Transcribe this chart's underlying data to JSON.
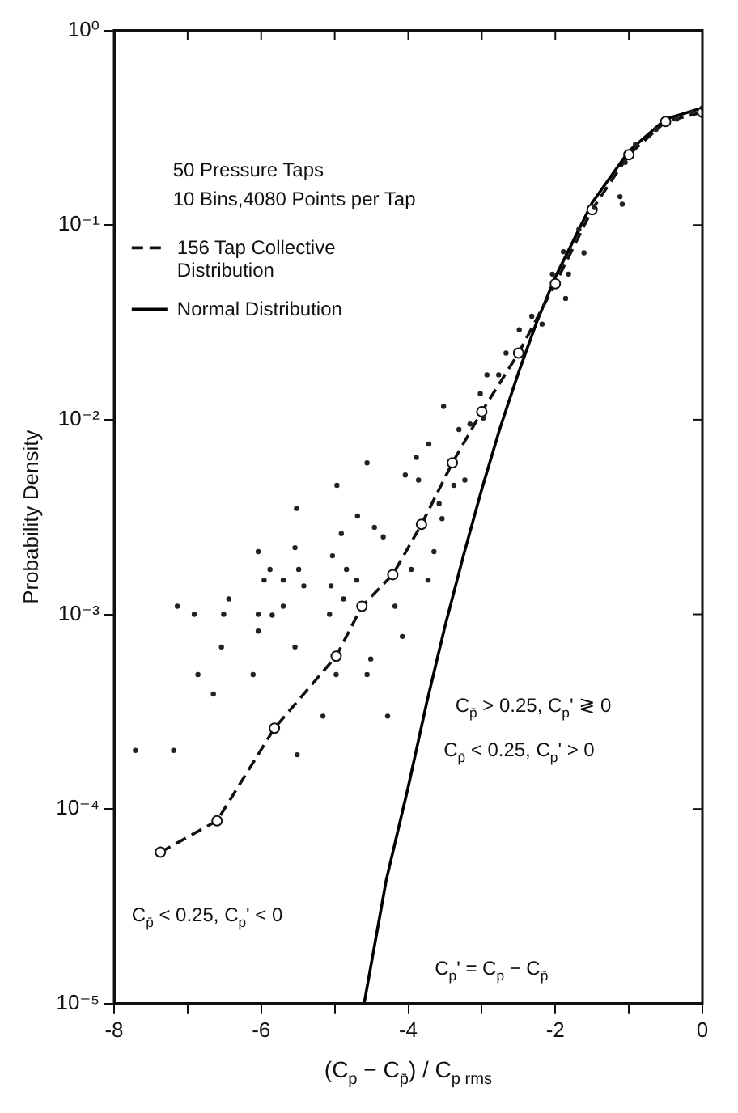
{
  "chart_data": {
    "type": "line",
    "xlabel": "(C$_{p}$ − C$_{p̄}$) / C$_{p rms}$",
    "ylabel": "Probability Density",
    "log": "y",
    "grid": false,
    "legend": "top left",
    "xlim": [
      -8,
      0
    ],
    "ylim": [
      1e-05,
      1
    ],
    "xticks": [
      -8,
      {
        "value": -7,
        "label": null
      },
      -6,
      {
        "value": -5,
        "label": null
      },
      -4,
      {
        "value": -3,
        "label": null
      },
      -2,
      {
        "value": -1,
        "label": null
      },
      0
    ],
    "yticks": [
      {
        "value": 1e-05,
        "label": "10⁻⁵"
      },
      {
        "value": 0.0001,
        "label": "10⁻⁴"
      },
      {
        "value": 0.001,
        "label": "10⁻³"
      },
      {
        "value": 0.01,
        "label": "10⁻²"
      },
      {
        "value": 0.1,
        "label": "10⁻¹"
      },
      {
        "value": 1,
        "label": "10⁰"
      }
    ],
    "annotations": [
      "50 Pressure Taps",
      "10 Bins,4080 Points per Tap",
      "C$_{p̄}$ > 0.25, C$_{p}$' ≷ 0",
      "C$_{p̄}$ < 0.25, C$_{p}$' > 0",
      "C$_{p̄}$ < 0.25, C$_{p}$' < 0",
      "C$_{p}$' = C$_{p}$ − C$_{p̄}$"
    ],
    "series": [
      {
        "type": "scatter",
        "color": "#222222",
        "marker": "circle",
        "x": [
          -7.71,
          -7.19,
          -7.14,
          -6.91,
          -6.86,
          -6.65,
          -6.54,
          -6.51,
          -6.44,
          -6.04,
          -6.04,
          -6.04,
          -6.11,
          -5.96,
          -5.88,
          -5.85,
          -5.7,
          -5.7,
          -5.54,
          -5.54,
          -5.49,
          -5.42,
          -5.52,
          -5.51,
          -5.16,
          -5.03,
          -5.05,
          -5.07,
          -4.98,
          -4.91,
          -4.84,
          -4.88,
          -4.69,
          -4.7,
          -4.56,
          -4.51,
          -4.46,
          -4.34,
          -4.28,
          -4.18,
          -4.08,
          -3.96,
          -3.73,
          -3.65,
          -3.54,
          -3.58,
          -3.52,
          -3.89,
          -3.72,
          -3.86,
          -4.56,
          -4.97,
          -4.04,
          -3.38,
          -3.23,
          -3.31,
          -3.16,
          -3.02,
          -2.93,
          -2.98,
          -2.77,
          -2.67,
          -2.49,
          -2.32,
          -2.18,
          -2.04,
          -1.82,
          -1.89,
          -1.68,
          -1.47,
          -1.12,
          -1.05,
          -0.91,
          -0.63,
          -0.35,
          -0.14,
          0,
          -1.61,
          -1.86,
          -1.09
        ],
        "values": [
          0.0002,
          0.0002,
          0.0011,
          0.001,
          0.00049,
          0.00039,
          0.00068,
          0.001,
          0.0012,
          0.0021,
          0.001,
          0.00082,
          0.00049,
          0.0015,
          0.0017,
          0.00099,
          0.0011,
          0.0015,
          0.0022,
          0.00068,
          0.0017,
          0.0014,
          0.0035,
          0.00019,
          0.0003,
          0.002,
          0.0014,
          0.001,
          0.00049,
          0.0026,
          0.0017,
          0.0012,
          0.0032,
          0.0015,
          0.00049,
          0.00059,
          0.0028,
          0.0025,
          0.0003,
          0.0011,
          0.00077,
          0.0017,
          0.0015,
          0.0021,
          0.0031,
          0.0037,
          0.0117,
          0.0064,
          0.0075,
          0.0049,
          0.006,
          0.0046,
          0.0052,
          0.0046,
          0.0049,
          0.0089,
          0.0095,
          0.0136,
          0.017,
          0.0102,
          0.017,
          0.022,
          0.029,
          0.034,
          0.031,
          0.056,
          0.056,
          0.073,
          0.095,
          0.123,
          0.14,
          0.21,
          0.26,
          0.31,
          0.35,
          0.38,
          0.4,
          0.072,
          0.042,
          0.128
        ]
      },
      {
        "name": "156 Tap Collective Distribution",
        "color": "#111111",
        "marker": "circle",
        "line_style": "dashed",
        "x": [
          -7.37,
          -6.6,
          -5.82,
          -4.98,
          -4.63,
          -4.21,
          -3.82,
          -3.4,
          -3,
          -2.5,
          -2,
          -1.5,
          -1,
          -0.5,
          0
        ],
        "values": [
          6e-05,
          8.7e-05,
          0.00026,
          0.00061,
          0.0011,
          0.0016,
          0.0029,
          0.006,
          0.011,
          0.022,
          0.05,
          0.12,
          0.23,
          0.34,
          0.38
        ]
      },
      {
        "name": "Normal Distribution",
        "color": "#000000",
        "marker": "none",
        "line_style": "solid",
        "x": [
          -4.6,
          -4.3,
          -4,
          -3.75,
          -3.5,
          -3.25,
          -3,
          -2.75,
          -2.5,
          -2.25,
          -2,
          -1.5,
          -1,
          -0.5,
          0
        ],
        "values": [
          1e-05,
          4.3e-05,
          0.00013,
          0.00035,
          0.00087,
          0.002,
          0.0044,
          0.0091,
          0.0175,
          0.032,
          0.054,
          0.13,
          0.24,
          0.35,
          0.4
        ]
      }
    ]
  }
}
